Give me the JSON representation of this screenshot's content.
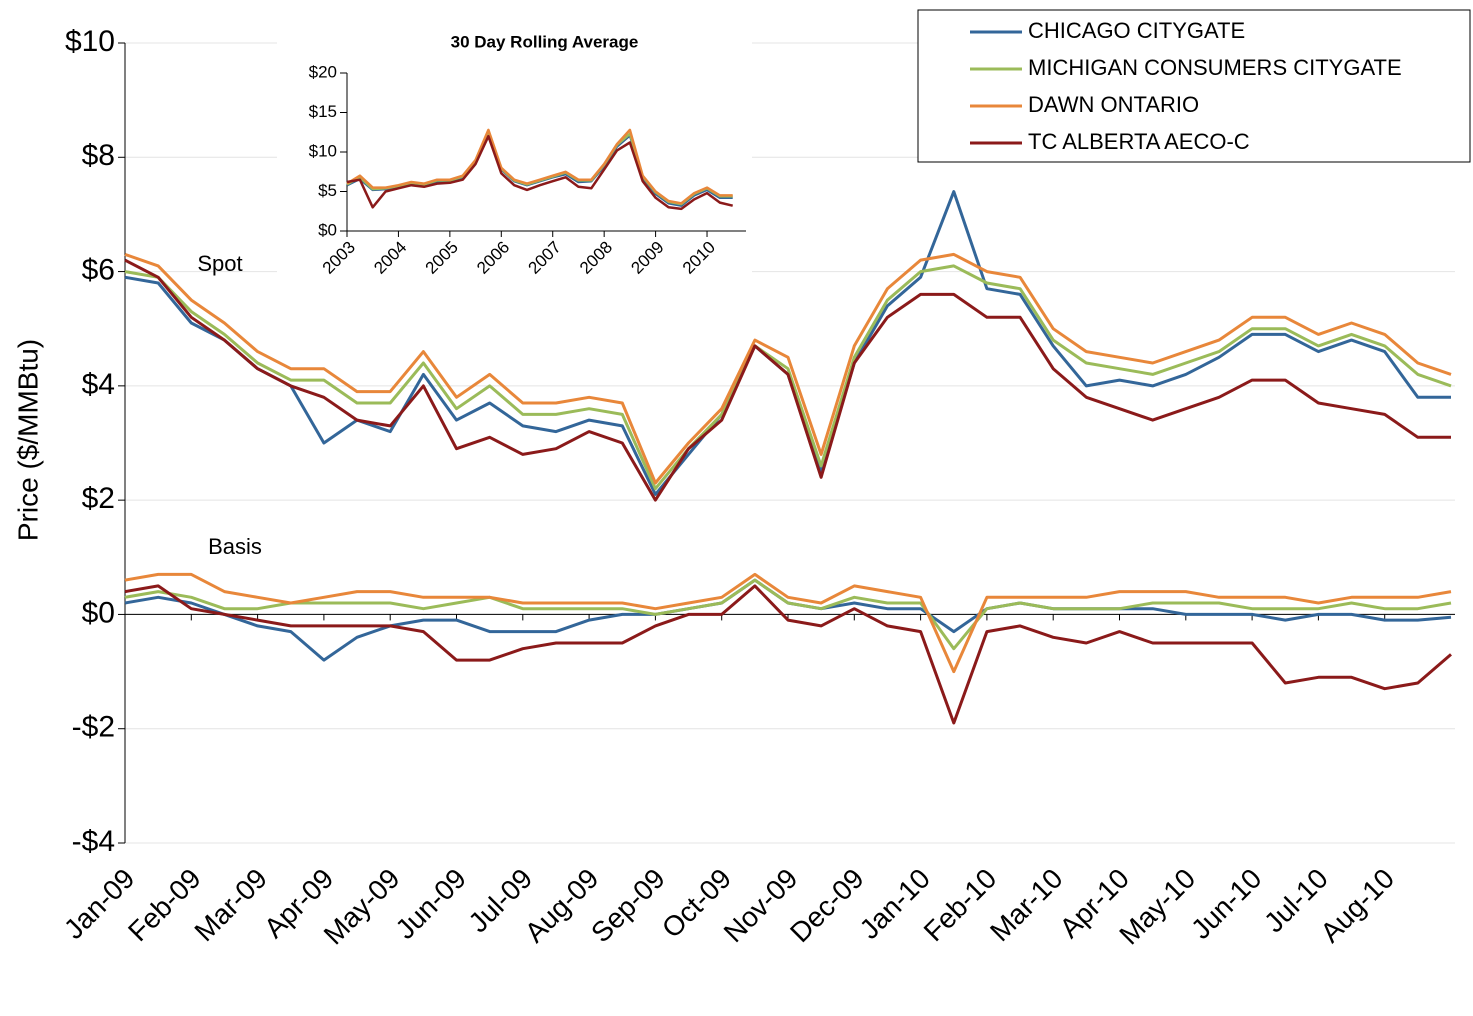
{
  "chart_data": [
    {
      "type": "line",
      "y_label": "Price ($/MMBtu)",
      "annotations": [
        "Spot",
        "Basis"
      ],
      "xlim": [
        0,
        20
      ],
      "xticks": [
        {
          "value": 0,
          "label": "Jan-09"
        },
        {
          "value": 1,
          "label": "Feb-09"
        },
        {
          "value": 2,
          "label": "Mar-09"
        },
        {
          "value": 3,
          "label": "Apr-09"
        },
        {
          "value": 4,
          "label": "May-09"
        },
        {
          "value": 5,
          "label": "Jun-09"
        },
        {
          "value": 6,
          "label": "Jul-09"
        },
        {
          "value": 7,
          "label": "Aug-09"
        },
        {
          "value": 8,
          "label": "Sep-09"
        },
        {
          "value": 9,
          "label": "Oct-09"
        },
        {
          "value": 10,
          "label": "Nov-09"
        },
        {
          "value": 11,
          "label": "Dec-09"
        },
        {
          "value": 12,
          "label": "Jan-10"
        },
        {
          "value": 13,
          "label": "Feb-10"
        },
        {
          "value": 14,
          "label": "Mar-10"
        },
        {
          "value": 15,
          "label": "Apr-10"
        },
        {
          "value": 16,
          "label": "May-10"
        },
        {
          "value": 17,
          "label": "Jun-10"
        },
        {
          "value": 18,
          "label": "Jul-10"
        },
        {
          "value": 19,
          "label": "Aug-10"
        }
      ],
      "ylim": [
        -4,
        10
      ],
      "yticks": [
        {
          "value": -4,
          "label": "-$4"
        },
        {
          "value": -2,
          "label": "-$2"
        },
        {
          "value": 0,
          "label": "$0"
        },
        {
          "value": 2,
          "label": "$2"
        },
        {
          "value": 4,
          "label": "$4"
        },
        {
          "value": 6,
          "label": "$6"
        },
        {
          "value": 8,
          "label": "$8"
        },
        {
          "value": 10,
          "label": "$10"
        }
      ],
      "grid": true,
      "legend": "top-right",
      "x": [
        0,
        0.5,
        1,
        1.5,
        2,
        2.5,
        3,
        3.5,
        4,
        4.5,
        5,
        5.5,
        6,
        6.5,
        7,
        7.5,
        8,
        8.5,
        9,
        9.5,
        10,
        10.5,
        11,
        11.5,
        12,
        12.5,
        13,
        13.5,
        14,
        14.5,
        15,
        15.5,
        16,
        16.5,
        17,
        17.5,
        18,
        18.5,
        19,
        19.5,
        20
      ],
      "series": [
        {
          "name": "CHICAGO CITYGATE",
          "color": "#336699",
          "values": [
            5.9,
            5.8,
            5.1,
            4.8,
            4.3,
            4.0,
            3.0,
            3.4,
            3.2,
            4.2,
            3.4,
            3.7,
            3.3,
            3.2,
            3.4,
            3.3,
            2.1,
            2.8,
            3.5,
            4.7,
            4.2,
            2.5,
            4.4,
            5.4,
            5.9,
            7.4,
            5.7,
            5.6,
            4.7,
            4.0,
            4.1,
            4.0,
            4.2,
            4.5,
            4.9,
            4.9,
            4.6,
            4.8,
            4.6,
            3.8,
            3.8
          ]
        },
        {
          "name": "MICHIGAN CONSUMERS CITYGATE",
          "color": "#9bbb59",
          "values": [
            6.0,
            5.9,
            5.3,
            4.9,
            4.4,
            4.1,
            4.1,
            3.7,
            3.7,
            4.4,
            3.6,
            4.0,
            3.5,
            3.5,
            3.6,
            3.5,
            2.2,
            2.9,
            3.5,
            4.7,
            4.3,
            2.6,
            4.5,
            5.5,
            6.0,
            6.1,
            5.8,
            5.7,
            4.8,
            4.4,
            4.3,
            4.2,
            4.4,
            4.6,
            5.0,
            5.0,
            4.7,
            4.9,
            4.7,
            4.2,
            4.0
          ]
        },
        {
          "name": "DAWN ONTARIO",
          "color": "#e8873a",
          "values": [
            6.3,
            6.1,
            5.5,
            5.1,
            4.6,
            4.3,
            4.3,
            3.9,
            3.9,
            4.6,
            3.8,
            4.2,
            3.7,
            3.7,
            3.8,
            3.7,
            2.3,
            3.0,
            3.6,
            4.8,
            4.5,
            2.8,
            4.7,
            5.7,
            6.2,
            6.3,
            6.0,
            5.9,
            5.0,
            4.6,
            4.5,
            4.4,
            4.6,
            4.8,
            5.2,
            5.2,
            4.9,
            5.1,
            4.9,
            4.4,
            4.2
          ]
        },
        {
          "name": "TC ALBERTA AECO-C",
          "color": "#8b1a1a",
          "values": [
            6.2,
            5.9,
            5.2,
            4.8,
            4.3,
            4.0,
            3.8,
            3.4,
            3.3,
            4.0,
            2.9,
            3.1,
            2.8,
            2.9,
            3.2,
            3.0,
            2.0,
            2.9,
            3.4,
            4.7,
            4.2,
            2.4,
            4.4,
            5.2,
            5.6,
            5.6,
            5.2,
            5.2,
            4.3,
            3.8,
            3.6,
            3.4,
            3.6,
            3.8,
            4.1,
            4.1,
            3.7,
            3.6,
            3.5,
            3.1,
            3.1
          ]
        },
        {
          "color": "#336699",
          "values": [
            0.2,
            0.3,
            0.2,
            0.0,
            -0.2,
            -0.3,
            -0.8,
            -0.4,
            -0.2,
            -0.1,
            -0.1,
            -0.3,
            -0.3,
            -0.3,
            -0.1,
            0.0,
            0.0,
            0.1,
            0.2,
            0.6,
            0.2,
            0.1,
            0.2,
            0.1,
            0.1,
            -0.3,
            0.1,
            0.2,
            0.1,
            0.1,
            0.1,
            0.1,
            0.0,
            0.0,
            0.0,
            -0.1,
            0.0,
            0.0,
            -0.1,
            -0.1,
            -0.05
          ]
        },
        {
          "color": "#9bbb59",
          "values": [
            0.3,
            0.4,
            0.3,
            0.1,
            0.1,
            0.2,
            0.2,
            0.2,
            0.2,
            0.1,
            0.2,
            0.3,
            0.1,
            0.1,
            0.1,
            0.1,
            0.0,
            0.1,
            0.2,
            0.6,
            0.2,
            0.1,
            0.3,
            0.2,
            0.2,
            -0.6,
            0.1,
            0.2,
            0.1,
            0.1,
            0.1,
            0.2,
            0.2,
            0.2,
            0.1,
            0.1,
            0.1,
            0.2,
            0.1,
            0.1,
            0.2
          ]
        },
        {
          "color": "#e8873a",
          "values": [
            0.6,
            0.7,
            0.7,
            0.4,
            0.3,
            0.2,
            0.3,
            0.4,
            0.4,
            0.3,
            0.3,
            0.3,
            0.2,
            0.2,
            0.2,
            0.2,
            0.1,
            0.2,
            0.3,
            0.7,
            0.3,
            0.2,
            0.5,
            0.4,
            0.3,
            -1.0,
            0.3,
            0.3,
            0.3,
            0.3,
            0.4,
            0.4,
            0.4,
            0.3,
            0.3,
            0.3,
            0.2,
            0.3,
            0.3,
            0.3,
            0.4
          ]
        },
        {
          "color": "#8b1a1a",
          "values": [
            0.4,
            0.5,
            0.1,
            0.0,
            -0.1,
            -0.2,
            -0.2,
            -0.2,
            -0.2,
            -0.3,
            -0.8,
            -0.8,
            -0.6,
            -0.5,
            -0.5,
            -0.5,
            -0.2,
            0.0,
            0.0,
            0.5,
            -0.1,
            -0.2,
            0.1,
            -0.2,
            -0.3,
            -1.9,
            -0.3,
            -0.2,
            -0.4,
            -0.5,
            -0.3,
            -0.5,
            -0.5,
            -0.5,
            -0.5,
            -1.2,
            -1.1,
            -1.1,
            -1.3,
            -1.2,
            -0.7
          ]
        }
      ]
    },
    {
      "type": "line",
      "title": "30 Day Rolling Average",
      "xlim": [
        2003,
        2010.68
      ],
      "xticks": [
        2003,
        2004,
        2005,
        2006,
        2007,
        2008,
        2009,
        2010
      ],
      "ylim": [
        0,
        20
      ],
      "yticks": [
        {
          "value": 0,
          "label": "$0"
        },
        {
          "value": 5,
          "label": "$5"
        },
        {
          "value": 10,
          "label": "$10"
        },
        {
          "value": 15,
          "label": "$15"
        },
        {
          "value": 20,
          "label": "$20"
        }
      ],
      "grid": false,
      "x": [
        2003,
        2003.25,
        2003.5,
        2003.75,
        2004,
        2004.25,
        2004.5,
        2004.75,
        2005,
        2005.25,
        2005.5,
        2005.75,
        2006,
        2006.25,
        2006.5,
        2006.75,
        2007,
        2007.25,
        2007.5,
        2007.75,
        2008,
        2008.25,
        2008.5,
        2008.75,
        2009,
        2009.25,
        2009.5,
        2009.75,
        2010,
        2010.25,
        2010.5
      ],
      "series": [
        {
          "color": "#336699",
          "values": [
            5.8,
            6.6,
            5.2,
            5.3,
            5.6,
            6.0,
            5.8,
            6.3,
            6.3,
            6.8,
            8.8,
            12.2,
            7.8,
            6.3,
            5.8,
            6.3,
            6.8,
            7.2,
            6.2,
            6.3,
            8.2,
            10.7,
            12.1,
            6.8,
            4.7,
            3.5,
            3.2,
            4.5,
            5.2,
            4.2,
            4.2
          ]
        },
        {
          "color": "#9bbb59",
          "values": [
            5.9,
            6.8,
            5.3,
            5.4,
            5.7,
            6.1,
            5.9,
            6.4,
            6.4,
            6.9,
            8.9,
            12.4,
            7.9,
            6.4,
            5.9,
            6.4,
            6.9,
            7.4,
            6.4,
            6.4,
            8.4,
            10.9,
            12.3,
            6.9,
            4.9,
            3.7,
            3.4,
            4.7,
            5.4,
            4.4,
            4.4
          ]
        },
        {
          "color": "#e8873a",
          "values": [
            6.0,
            7.0,
            5.5,
            5.5,
            5.8,
            6.2,
            6.0,
            6.5,
            6.5,
            7.0,
            9.0,
            12.8,
            8.0,
            6.5,
            6.0,
            6.5,
            7.0,
            7.5,
            6.5,
            6.5,
            8.5,
            11.0,
            12.8,
            7.0,
            5.0,
            3.8,
            3.5,
            4.8,
            5.5,
            4.5,
            4.5
          ]
        },
        {
          "color": "#8b1a1a",
          "values": [
            6.2,
            6.5,
            3.0,
            5.0,
            5.4,
            5.8,
            5.6,
            6.0,
            6.1,
            6.5,
            8.5,
            12.0,
            7.3,
            5.8,
            5.2,
            5.8,
            6.3,
            6.8,
            5.6,
            5.4,
            7.8,
            10.2,
            11.2,
            6.3,
            4.2,
            3.0,
            2.8,
            4.0,
            4.8,
            3.6,
            3.2
          ]
        }
      ]
    }
  ]
}
